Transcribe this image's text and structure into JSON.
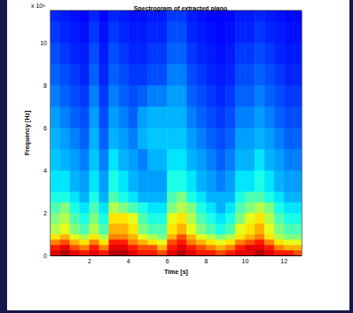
{
  "chart_data": {
    "type": "heatmap",
    "title": "Spectrogram of extracted piano",
    "x_label": "Time [s]",
    "y_label": "Frequency [Hz]",
    "annotations": [
      "x 10³"
    ],
    "xlim": [
      0,
      12.9
    ],
    "xticks": [
      2,
      4,
      6,
      8,
      10,
      12
    ],
    "ylim": [
      0,
      11.5
    ],
    "yticks": [
      0,
      2,
      4,
      6,
      8,
      10
    ],
    "grid": false,
    "clim": [
      0,
      1
    ],
    "time_edges": [
      0,
      0.5,
      1,
      1.5,
      2,
      2.5,
      3,
      3.5,
      4,
      4.5,
      5,
      5.5,
      6,
      6.5,
      7,
      7.5,
      8,
      8.5,
      9,
      9.5,
      10,
      10.5,
      11,
      11.5,
      12,
      12.5,
      12.9
    ],
    "frequency_edges": [
      0,
      0.25,
      0.5,
      0.75,
      1,
      1.5,
      2,
      2.5,
      3,
      4,
      5,
      6,
      7,
      8,
      9,
      10,
      11,
      11.5
    ],
    "cells": [
      [
        0.9,
        0.95,
        0.9,
        0.85,
        0.9,
        0.85,
        0.95,
        0.95,
        0.9,
        0.85,
        0.85,
        0.8,
        0.9,
        0.95,
        0.9,
        0.85,
        0.85,
        0.8,
        0.85,
        0.9,
        0.9,
        0.95,
        0.9,
        0.85,
        0.85,
        0.8
      ],
      [
        0.85,
        0.9,
        0.8,
        0.75,
        0.85,
        0.75,
        0.9,
        0.9,
        0.85,
        0.8,
        0.8,
        0.7,
        0.85,
        0.9,
        0.85,
        0.8,
        0.75,
        0.7,
        0.75,
        0.85,
        0.9,
        0.9,
        0.85,
        0.75,
        0.7,
        0.7
      ],
      [
        0.75,
        0.8,
        0.7,
        0.65,
        0.75,
        0.65,
        0.85,
        0.85,
        0.75,
        0.7,
        0.65,
        0.6,
        0.8,
        0.85,
        0.75,
        0.7,
        0.65,
        0.6,
        0.65,
        0.75,
        0.8,
        0.85,
        0.75,
        0.65,
        0.6,
        0.6
      ],
      [
        0.65,
        0.7,
        0.6,
        0.55,
        0.65,
        0.55,
        0.75,
        0.75,
        0.7,
        0.6,
        0.55,
        0.5,
        0.7,
        0.8,
        0.7,
        0.6,
        0.55,
        0.5,
        0.55,
        0.65,
        0.7,
        0.75,
        0.65,
        0.55,
        0.5,
        0.5
      ],
      [
        0.55,
        0.6,
        0.5,
        0.45,
        0.55,
        0.45,
        0.7,
        0.7,
        0.65,
        0.5,
        0.45,
        0.45,
        0.65,
        0.7,
        0.6,
        0.5,
        0.45,
        0.4,
        0.45,
        0.6,
        0.65,
        0.7,
        0.6,
        0.5,
        0.45,
        0.45
      ],
      [
        0.5,
        0.55,
        0.45,
        0.4,
        0.5,
        0.4,
        0.65,
        0.65,
        0.6,
        0.45,
        0.4,
        0.4,
        0.6,
        0.65,
        0.55,
        0.45,
        0.4,
        0.35,
        0.4,
        0.5,
        0.6,
        0.65,
        0.55,
        0.45,
        0.4,
        0.4
      ],
      [
        0.45,
        0.5,
        0.4,
        0.35,
        0.45,
        0.35,
        0.55,
        0.5,
        0.45,
        0.4,
        0.35,
        0.35,
        0.5,
        0.55,
        0.5,
        0.4,
        0.35,
        0.3,
        0.35,
        0.45,
        0.5,
        0.55,
        0.5,
        0.4,
        0.35,
        0.35
      ],
      [
        0.4,
        0.4,
        0.35,
        0.3,
        0.4,
        0.3,
        0.45,
        0.4,
        0.35,
        0.3,
        0.3,
        0.3,
        0.45,
        0.5,
        0.4,
        0.35,
        0.3,
        0.3,
        0.3,
        0.4,
        0.45,
        0.45,
        0.4,
        0.35,
        0.3,
        0.3
      ],
      [
        0.35,
        0.35,
        0.3,
        0.28,
        0.35,
        0.28,
        0.4,
        0.35,
        0.3,
        0.28,
        0.28,
        0.28,
        0.4,
        0.4,
        0.35,
        0.3,
        0.28,
        0.25,
        0.28,
        0.35,
        0.35,
        0.4,
        0.35,
        0.3,
        0.28,
        0.28
      ],
      [
        0.32,
        0.3,
        0.28,
        0.25,
        0.32,
        0.25,
        0.35,
        0.3,
        0.28,
        0.25,
        0.3,
        0.3,
        0.35,
        0.35,
        0.3,
        0.28,
        0.25,
        0.22,
        0.25,
        0.3,
        0.3,
        0.35,
        0.3,
        0.28,
        0.25,
        0.25
      ],
      [
        0.3,
        0.28,
        0.25,
        0.22,
        0.3,
        0.22,
        0.3,
        0.28,
        0.25,
        0.3,
        0.32,
        0.32,
        0.32,
        0.32,
        0.28,
        0.25,
        0.22,
        0.2,
        0.22,
        0.28,
        0.28,
        0.3,
        0.28,
        0.25,
        0.22,
        0.22
      ],
      [
        0.28,
        0.25,
        0.22,
        0.2,
        0.28,
        0.2,
        0.28,
        0.25,
        0.22,
        0.28,
        0.3,
        0.3,
        0.3,
        0.3,
        0.25,
        0.22,
        0.2,
        0.18,
        0.2,
        0.25,
        0.25,
        0.28,
        0.25,
        0.22,
        0.2,
        0.2
      ],
      [
        0.25,
        0.22,
        0.2,
        0.18,
        0.25,
        0.18,
        0.25,
        0.22,
        0.2,
        0.22,
        0.25,
        0.25,
        0.28,
        0.28,
        0.22,
        0.2,
        0.18,
        0.16,
        0.18,
        0.22,
        0.22,
        0.25,
        0.22,
        0.2,
        0.18,
        0.18
      ],
      [
        0.22,
        0.2,
        0.18,
        0.16,
        0.22,
        0.16,
        0.22,
        0.2,
        0.18,
        0.18,
        0.2,
        0.2,
        0.25,
        0.25,
        0.2,
        0.18,
        0.16,
        0.15,
        0.16,
        0.2,
        0.2,
        0.22,
        0.2,
        0.18,
        0.16,
        0.16
      ],
      [
        0.2,
        0.18,
        0.16,
        0.15,
        0.2,
        0.15,
        0.2,
        0.18,
        0.16,
        0.16,
        0.18,
        0.18,
        0.22,
        0.22,
        0.18,
        0.16,
        0.15,
        0.14,
        0.15,
        0.18,
        0.18,
        0.2,
        0.18,
        0.16,
        0.15,
        0.15
      ],
      [
        0.18,
        0.16,
        0.15,
        0.14,
        0.18,
        0.14,
        0.18,
        0.16,
        0.15,
        0.15,
        0.16,
        0.16,
        0.2,
        0.2,
        0.16,
        0.15,
        0.14,
        0.13,
        0.14,
        0.16,
        0.16,
        0.18,
        0.16,
        0.15,
        0.14,
        0.14
      ],
      [
        0.16,
        0.15,
        0.14,
        0.13,
        0.16,
        0.13,
        0.16,
        0.15,
        0.14,
        0.14,
        0.15,
        0.15,
        0.18,
        0.18,
        0.15,
        0.14,
        0.13,
        0.12,
        0.13,
        0.15,
        0.15,
        0.16,
        0.15,
        0.14,
        0.13,
        0.13
      ]
    ]
  }
}
